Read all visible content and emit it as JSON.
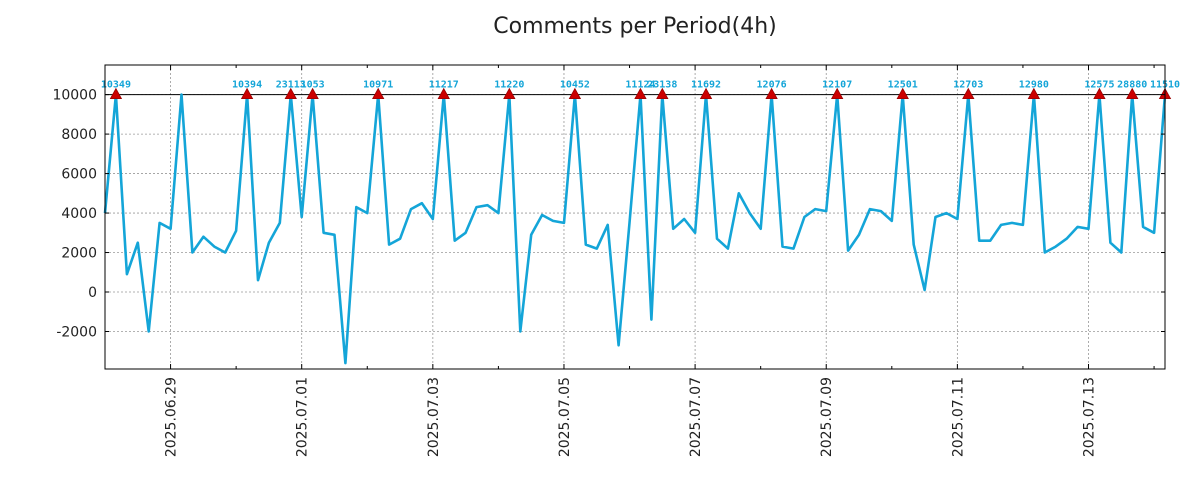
{
  "chart_data": {
    "type": "line",
    "title": "Comments per Period(4h)",
    "xlabel": "",
    "ylabel": "",
    "ylim": [
      -3900,
      11500
    ],
    "yticks": [
      -2000,
      0,
      2000,
      4000,
      6000,
      8000,
      10000
    ],
    "threshold_line": 10000,
    "grid": true,
    "series_color": "#14a5d8",
    "marker_color": "#cc0000",
    "xticks": [
      {
        "label": "2025.06.29",
        "index": 6
      },
      {
        "label": "2025.07.01",
        "index": 18
      },
      {
        "label": "2025.07.03",
        "index": 30
      },
      {
        "label": "2025.07.05",
        "index": 42
      },
      {
        "label": "2025.07.07",
        "index": 54
      },
      {
        "label": "2025.07.09",
        "index": 66
      },
      {
        "label": "2025.07.11",
        "index": 78
      },
      {
        "label": "2025.07.13",
        "index": 90
      }
    ],
    "values": [
      4000,
      10000,
      900,
      2500,
      -2000,
      3500,
      3200,
      10000,
      2000,
      2800,
      2300,
      2000,
      3100,
      10000,
      600,
      2500,
      3500,
      10000,
      3800,
      10000,
      3000,
      2900,
      -3600,
      4300,
      4000,
      10000,
      2400,
      2700,
      4200,
      4500,
      3700,
      10000,
      2600,
      3000,
      4300,
      4400,
      4000,
      10000,
      -2000,
      2900,
      3900,
      3600,
      3500,
      10000,
      2400,
      2200,
      3400,
      -2700,
      3500,
      10000,
      -1400,
      10000,
      3200,
      3700,
      3000,
      10000,
      2700,
      2200,
      5000,
      4000,
      3200,
      10000,
      2300,
      2200,
      3800,
      4200,
      4100,
      10000,
      2100,
      2900,
      4200,
      4100,
      3600,
      10000,
      2400,
      100,
      3800,
      4000,
      3700,
      10000,
      2600,
      2600,
      3400,
      3500,
      3400,
      10000,
      2000,
      2300,
      2700,
      3300,
      3200,
      10000,
      2500,
      2000,
      10000,
      3300,
      3000,
      10000
    ],
    "peaks": [
      {
        "index": 1,
        "label": "10349"
      },
      {
        "index": 13,
        "label": "10394"
      },
      {
        "index": 17,
        "label": "23113"
      },
      {
        "index": 19,
        "label": "1053"
      },
      {
        "index": 25,
        "label": "10971"
      },
      {
        "index": 31,
        "label": "11217"
      },
      {
        "index": 37,
        "label": "11220"
      },
      {
        "index": 43,
        "label": "10452"
      },
      {
        "index": 49,
        "label": "11124"
      },
      {
        "index": 51,
        "label": "23138"
      },
      {
        "index": 55,
        "label": "11692"
      },
      {
        "index": 61,
        "label": "12076"
      },
      {
        "index": 67,
        "label": "12107"
      },
      {
        "index": 73,
        "label": "12501"
      },
      {
        "index": 79,
        "label": "12703"
      },
      {
        "index": 85,
        "label": "12980"
      },
      {
        "index": 91,
        "label": "12575"
      },
      {
        "index": 94,
        "label": "28880"
      },
      {
        "index": 97,
        "label": "11510"
      }
    ]
  }
}
